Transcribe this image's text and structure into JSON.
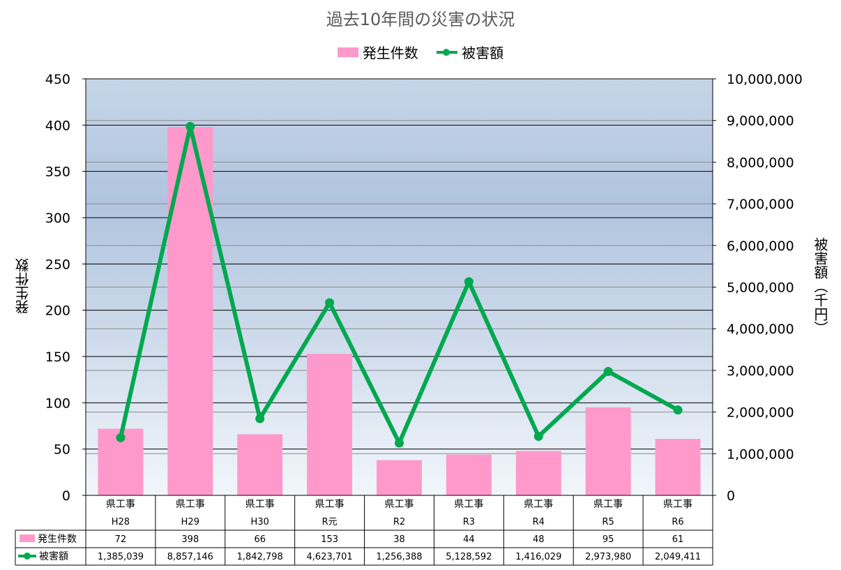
{
  "chart_data": {
    "type": "bar+line",
    "title": "過去10年間の災害の状況",
    "categories": [
      {
        "line1": "県工事",
        "line2": "H28"
      },
      {
        "line1": "県工事",
        "line2": "H29"
      },
      {
        "line1": "県工事",
        "line2": "H30"
      },
      {
        "line1": "県工事",
        "line2": "R元"
      },
      {
        "line1": "県工事",
        "line2": "R2"
      },
      {
        "line1": "県工事",
        "line2": "R3"
      },
      {
        "line1": "県工事",
        "line2": "R4"
      },
      {
        "line1": "県工事",
        "line2": "R5"
      },
      {
        "line1": "県工事",
        "line2": "R6"
      }
    ],
    "series": [
      {
        "name": "発生件数",
        "type": "bar",
        "axis": "left",
        "color": "#ff99cc",
        "values": [
          72,
          398,
          66,
          153,
          38,
          44,
          48,
          95,
          61
        ],
        "labels": [
          "72",
          "398",
          "66",
          "153",
          "38",
          "44",
          "48",
          "95",
          "61"
        ]
      },
      {
        "name": "被害額",
        "type": "line",
        "axis": "right",
        "color": "#00a84f",
        "values": [
          1385039,
          8857146,
          1842798,
          4623701,
          1256388,
          5128592,
          1416029,
          2973980,
          2049411
        ],
        "labels": [
          "1,385,039",
          "8,857,146",
          "1,842,798",
          "4,623,701",
          "1,256,388",
          "5,128,592",
          "1,416,029",
          "2,973,980",
          "2,049,411"
        ]
      }
    ],
    "ylabel": "発生件数",
    "y2label": "被害額（千円）",
    "ylim": [
      0,
      450
    ],
    "y2lim": [
      0,
      10000000
    ],
    "yticks": [
      "0",
      "50",
      "100",
      "150",
      "200",
      "250",
      "300",
      "350",
      "400",
      "450"
    ],
    "y2ticks": [
      "0",
      "1,000,000",
      "2,000,000",
      "3,000,000",
      "4,000,000",
      "5,000,000",
      "6,000,000",
      "7,000,000",
      "8,000,000",
      "9,000,000",
      "10,000,000"
    ],
    "grid": true,
    "legend": "top-center",
    "data_table": true
  }
}
